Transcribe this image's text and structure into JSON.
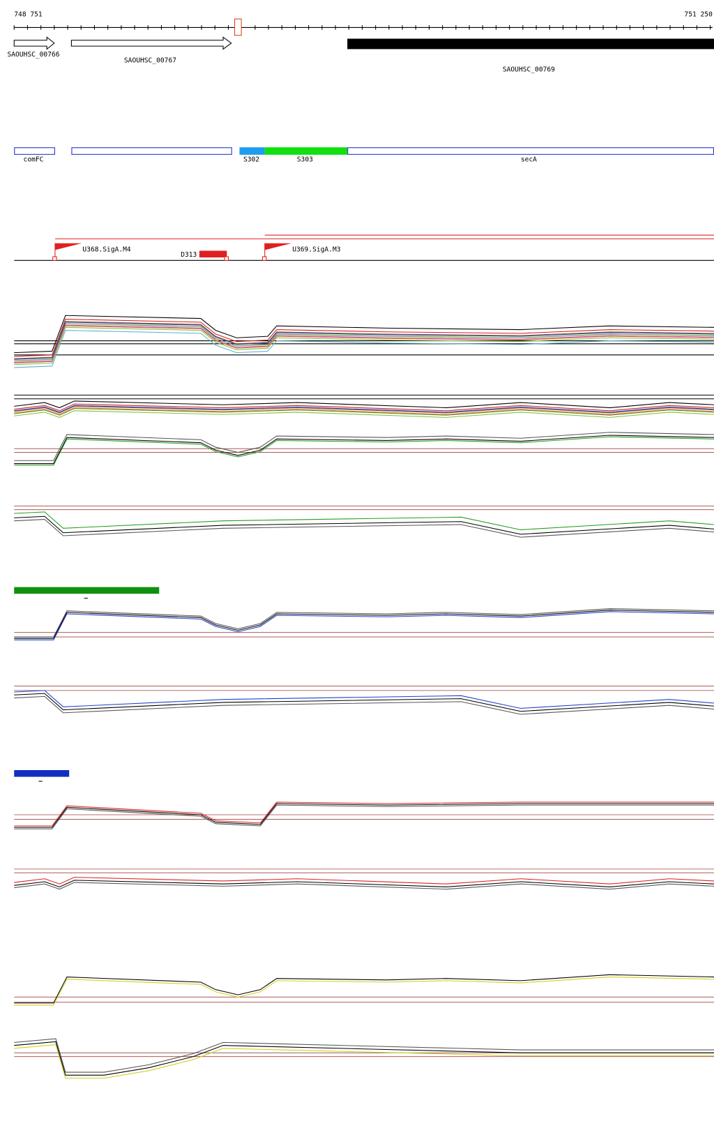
{
  "ruler": {
    "start": "748 751",
    "end": "751 250"
  },
  "genes": [
    "SAOUHSC_00766",
    "SAOUHSC_00767",
    "SAOUHSC_00769"
  ],
  "features": [
    "comFC",
    "S302",
    "S303",
    "secA"
  ],
  "transcripts": [
    "U368.SigA.M4",
    "D313",
    "U369.SigA.M3"
  ]
}
